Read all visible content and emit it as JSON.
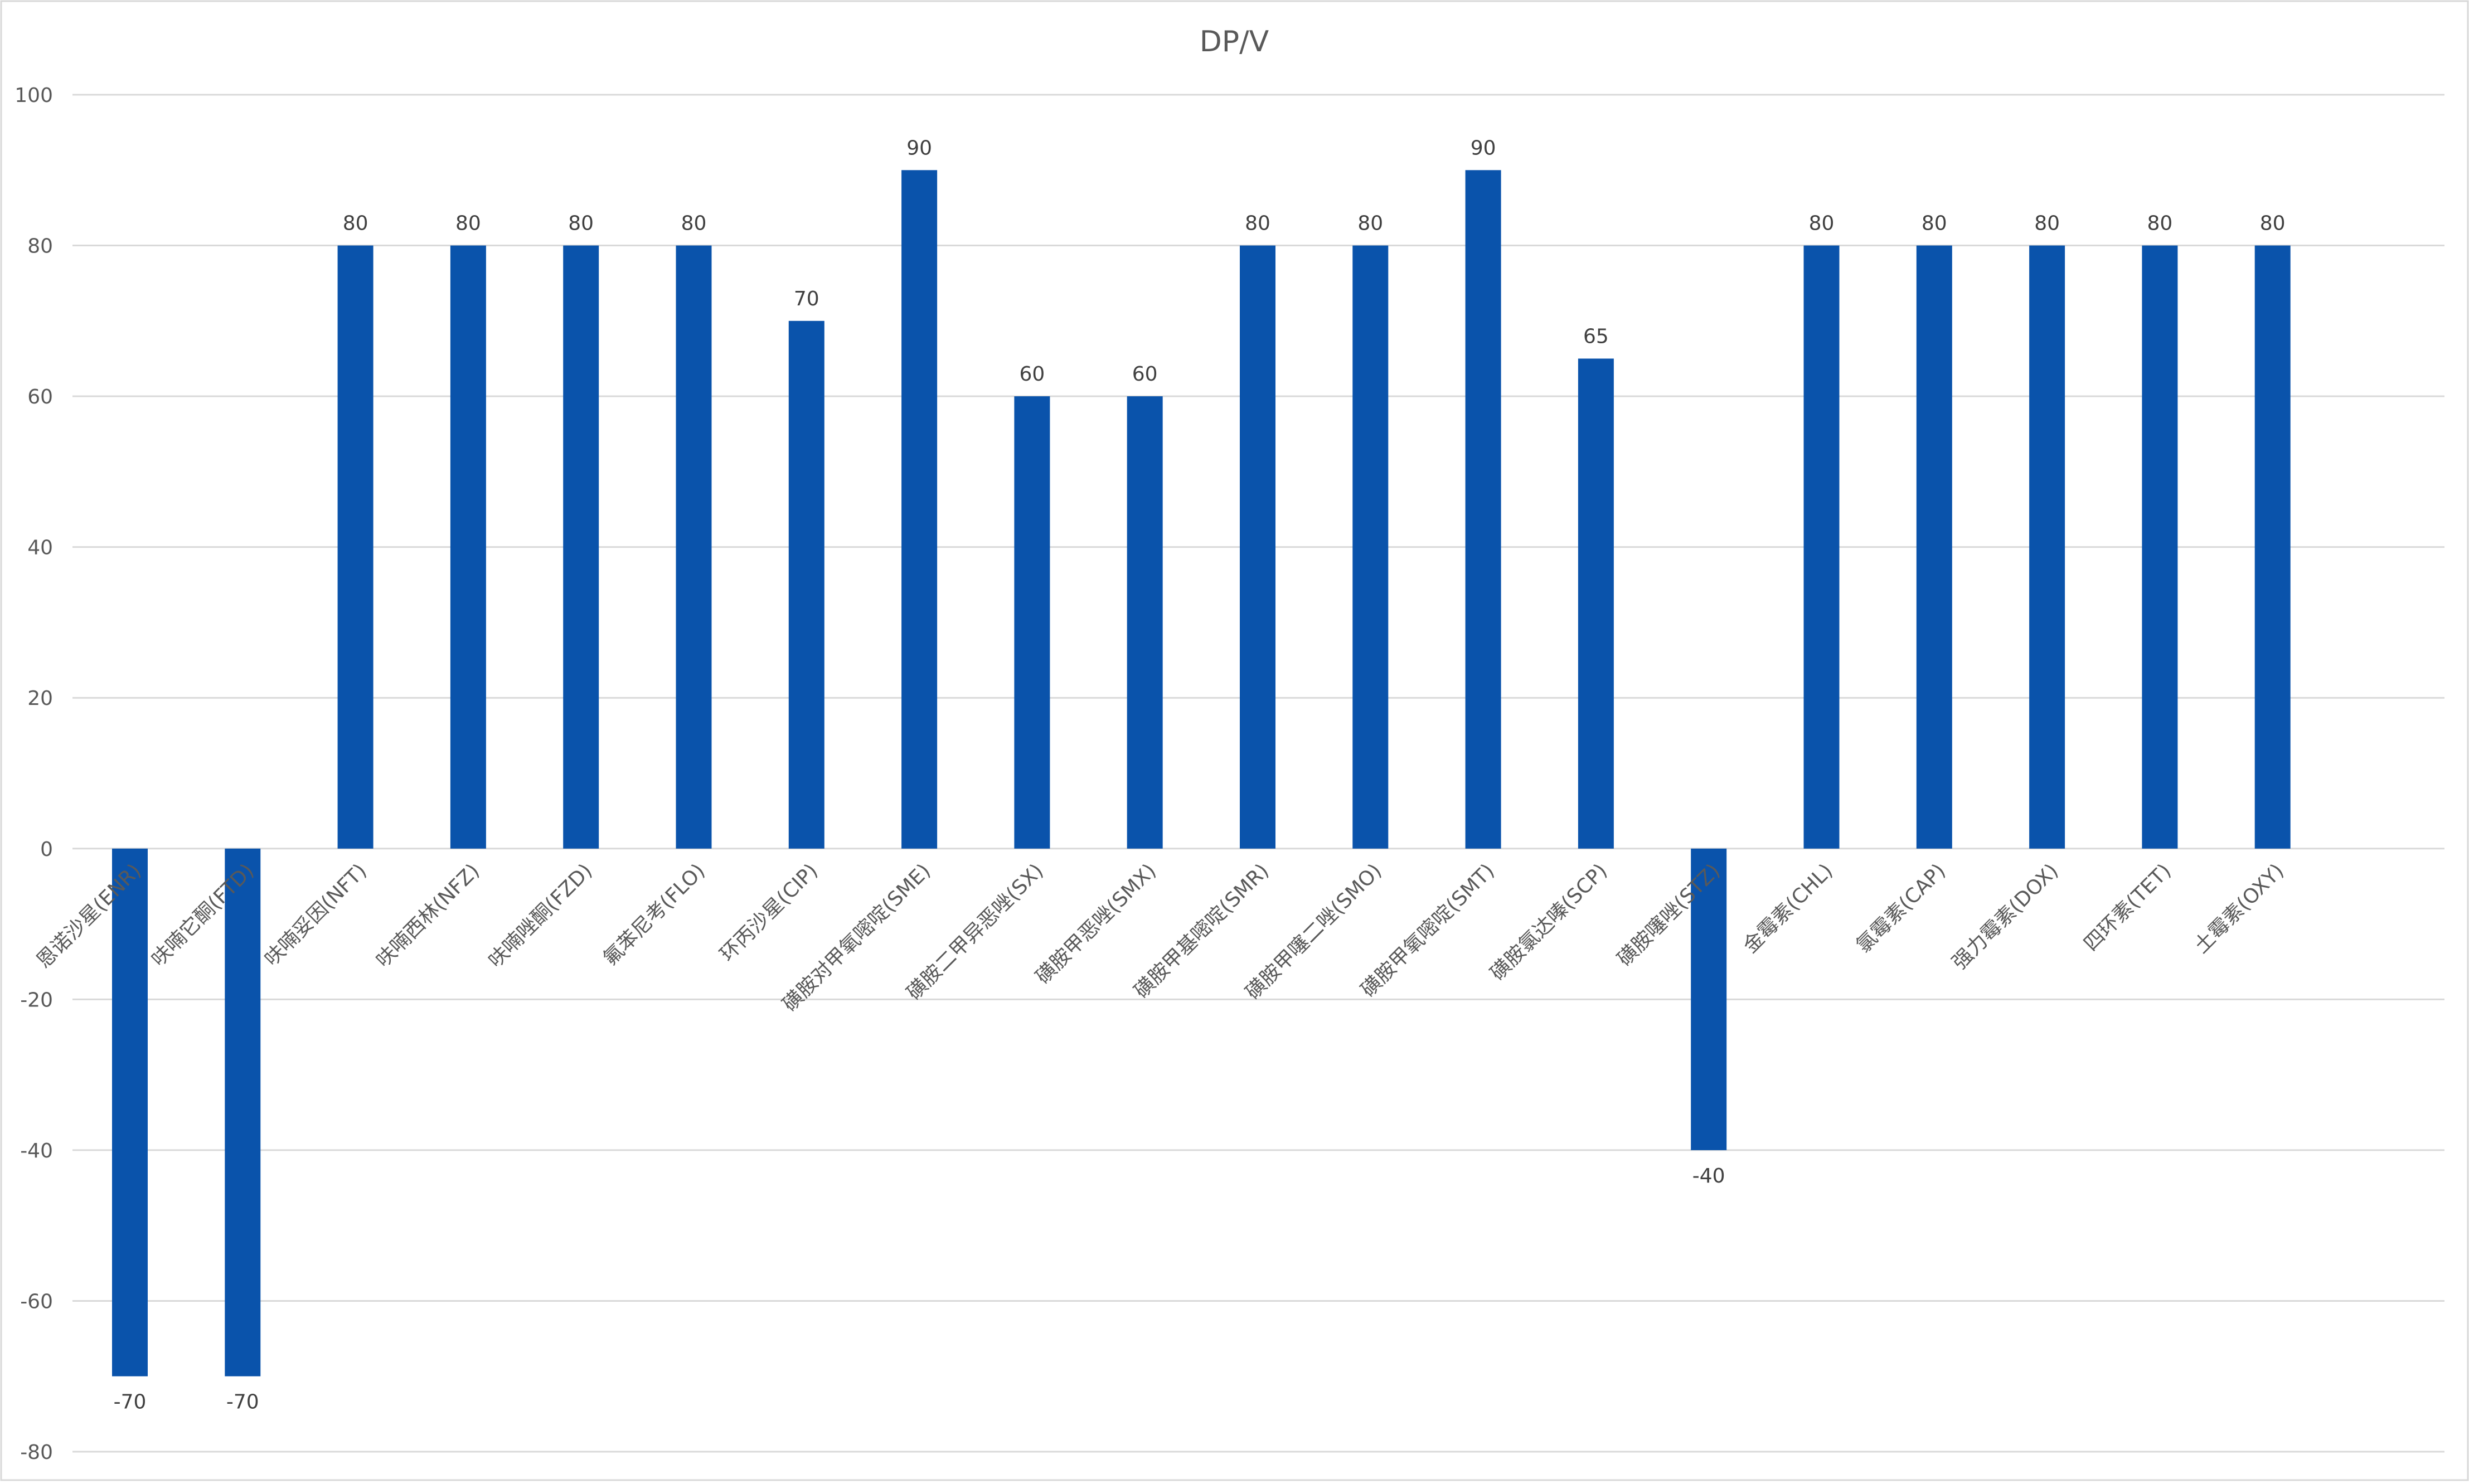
{
  "chart_data": {
    "type": "bar",
    "title": "DP/V",
    "xlabel": "",
    "ylabel": "",
    "ylim": [
      -80,
      100
    ],
    "yticks": [
      100,
      80,
      60,
      40,
      20,
      0,
      -20,
      -40,
      -60,
      -80
    ],
    "grid": true,
    "legend": "none",
    "categories": [
      "恩诺沙星(ENR)",
      "呋喃它酮(FTD)",
      "呋喃妥因(NFT)",
      "呋喃西林(NFZ)",
      "呋喃唑酮(FZD)",
      "氟苯尼考(FLO)",
      "环丙沙星(CIP)",
      "磺胺对甲氧嘧啶(SME)",
      "磺胺二甲异恶唑(SX)",
      "磺胺甲恶唑(SMX)",
      "磺胺甲基嘧啶(SMR)",
      "磺胺甲噻二唑(SMO)",
      "磺胺甲氧嘧啶(SMT)",
      "磺胺氯达嗪(SCP)",
      "磺胺噻唑(STZ)",
      "金霉素(CHL)",
      "氯霉素(CAP)",
      "强力霉素(DOX)",
      "四环素(TET)",
      "土霉素(OXY)"
    ],
    "values": [
      -70,
      -70,
      80,
      80,
      80,
      80,
      70,
      90,
      60,
      60,
      80,
      80,
      90,
      65,
      -40,
      80,
      80,
      80,
      80,
      80
    ],
    "bar_color": "#0a53ab"
  }
}
